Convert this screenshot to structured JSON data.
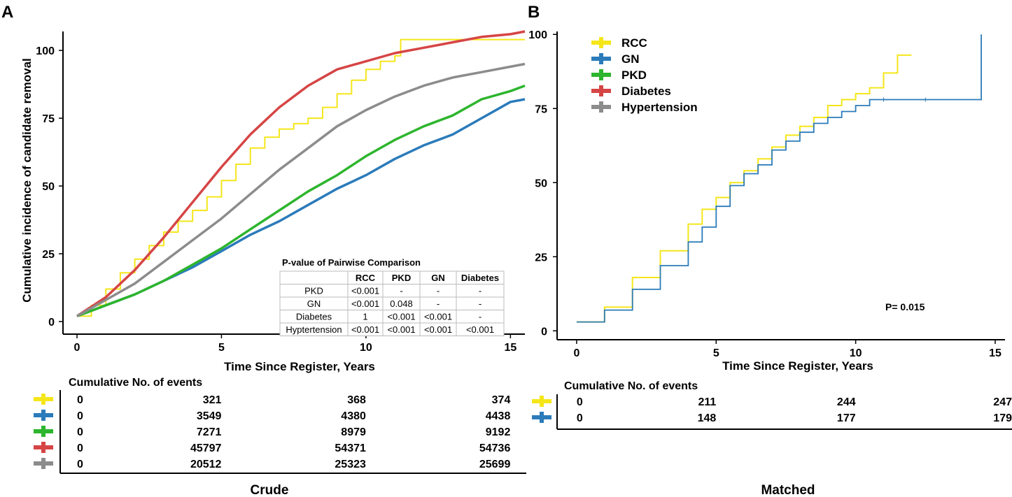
{
  "colors": {
    "RCC": "#f5e61a",
    "GN": "#2b7bba",
    "PKD": "#2db52d",
    "Diabetes": "#d64545",
    "Hypertension": "#8c8c8c",
    "axis": "#000000",
    "table_border": "#bbbbbb"
  },
  "chart_data": [
    {
      "panel_label": "A",
      "panel_title": "Crude",
      "type": "line",
      "xlabel": "Time Since Register, Years",
      "ylabel": "Cumulative incidence of candidate removal",
      "xlim": [
        0,
        15.5
      ],
      "ylim": [
        0,
        107
      ],
      "xticks": [
        "0",
        "5",
        "10",
        "15"
      ],
      "yticks": [
        "0",
        "25",
        "50",
        "75",
        "100"
      ],
      "series": [
        {
          "name": "RCC",
          "color": "#f5e61a",
          "x": [
            0,
            0.5,
            1,
            1.5,
            2,
            2.5,
            3,
            3.5,
            4,
            4.5,
            5,
            5.5,
            6,
            6.5,
            7,
            7.5,
            8,
            8.5,
            9,
            9.5,
            10,
            10.5,
            11,
            11.2,
            12,
            13,
            14,
            15,
            15.5
          ],
          "y": [
            2,
            6,
            12,
            18,
            23,
            28,
            33,
            37,
            41,
            46,
            52,
            58,
            64,
            68,
            71,
            73,
            75,
            79,
            84,
            89,
            93,
            96,
            98,
            104,
            104,
            104,
            104,
            104,
            104
          ]
        },
        {
          "name": "GN",
          "color": "#2b7bba",
          "x": [
            0,
            1,
            2,
            3,
            4,
            5,
            6,
            7,
            8,
            9,
            10,
            11,
            12,
            13,
            14,
            15,
            15.5
          ],
          "y": [
            2,
            6,
            10,
            15,
            20,
            26,
            32,
            37,
            43,
            49,
            54,
            60,
            65,
            69,
            75,
            81,
            82
          ]
        },
        {
          "name": "PKD",
          "color": "#2db52d",
          "x": [
            0,
            1,
            2,
            3,
            4,
            5,
            6,
            7,
            8,
            9,
            10,
            11,
            12,
            13,
            14,
            15,
            15.5
          ],
          "y": [
            2,
            6,
            10,
            15,
            21,
            27,
            34,
            41,
            48,
            54,
            61,
            67,
            72,
            76,
            82,
            85,
            87
          ]
        },
        {
          "name": "Diabetes",
          "color": "#d64545",
          "x": [
            0,
            1,
            2,
            3,
            4,
            5,
            6,
            7,
            8,
            9,
            10,
            11,
            12,
            13,
            14,
            15,
            15.5
          ],
          "y": [
            2,
            9,
            19,
            31,
            44,
            57,
            69,
            79,
            87,
            93,
            96,
            99,
            101,
            103,
            105,
            106,
            107
          ]
        },
        {
          "name": "Hypertension",
          "color": "#8c8c8c",
          "x": [
            0,
            1,
            2,
            3,
            4,
            5,
            6,
            7,
            8,
            9,
            10,
            11,
            12,
            13,
            14,
            15,
            15.5
          ],
          "y": [
            2,
            8,
            14,
            22,
            30,
            38,
            47,
            56,
            64,
            72,
            78,
            83,
            87,
            90,
            92,
            94,
            95
          ]
        }
      ]
    },
    {
      "panel_label": "B",
      "panel_title": "Matched",
      "type": "line",
      "xlabel": "Time Since Register, Years",
      "xlim": [
        -0.7,
        15
      ],
      "ylim": [
        -3,
        101
      ],
      "xticks": [
        "0",
        "5",
        "10",
        "15"
      ],
      "yticks": [
        "0",
        "25",
        "50",
        "75",
        "100"
      ],
      "annotation": "P= 0.015",
      "series": [
        {
          "name": "RCC",
          "color": "#f5e61a",
          "x": [
            0,
            1,
            2,
            3,
            4,
            4.5,
            5,
            5.5,
            6,
            6.5,
            7,
            7.5,
            8,
            8.5,
            9,
            9.5,
            10,
            10.5,
            11,
            11.5,
            12
          ],
          "y": [
            3,
            8,
            18,
            27,
            36,
            41,
            45,
            50,
            54,
            58,
            62,
            66,
            69,
            72,
            76,
            78,
            80,
            82,
            87,
            93,
            93
          ]
        },
        {
          "name": "GN",
          "color": "#2b7bba",
          "x": [
            0,
            1,
            2,
            3,
            4,
            4.5,
            5,
            5.5,
            6,
            6.5,
            7,
            7.5,
            8,
            8.5,
            9,
            9.5,
            10,
            10.5,
            11,
            12,
            13,
            14,
            14.5,
            14.5
          ],
          "y": [
            3,
            7,
            14,
            22,
            30,
            35,
            42,
            49,
            53,
            56,
            61,
            64,
            67,
            70,
            72,
            74,
            76,
            78,
            78,
            78,
            78,
            78,
            78,
            100
          ]
        }
      ]
    }
  ],
  "legend_b": [
    "RCC",
    "GN",
    "PKD",
    "Diabetes",
    "Hypertension"
  ],
  "pvalue_table": {
    "title": "P-value of Pairwise Comparison",
    "columns": [
      "",
      "RCC",
      "PKD",
      "GN",
      "Diabetes"
    ],
    "rows": [
      [
        "PKD",
        "<0.001",
        "-",
        "-",
        "-"
      ],
      [
        "GN",
        "<0.001",
        "0.048",
        "-",
        "-"
      ],
      [
        "Diabetes",
        "1",
        "<0.001",
        "<0.001",
        "-"
      ],
      [
        "Hyptertension",
        "<0.001",
        "<0.001",
        "<0.001",
        "<0.001"
      ]
    ]
  },
  "events_a": {
    "title": "Cumulative No. of events",
    "rows": [
      {
        "group": "RCC",
        "values": [
          "0",
          "321",
          "368",
          "374"
        ]
      },
      {
        "group": "GN",
        "values": [
          "0",
          "3549",
          "4380",
          "4438"
        ]
      },
      {
        "group": "PKD",
        "values": [
          "0",
          "7271",
          "8979",
          "9192"
        ]
      },
      {
        "group": "Diabetes",
        "values": [
          "0",
          "45797",
          "54371",
          "54736"
        ]
      },
      {
        "group": "Hypertension",
        "values": [
          "0",
          "20512",
          "25323",
          "25699"
        ]
      }
    ]
  },
  "events_b": {
    "title": "Cumulative No. of events",
    "rows": [
      {
        "group": "RCC",
        "values": [
          "0",
          "211",
          "244",
          "247"
        ]
      },
      {
        "group": "GN",
        "values": [
          "0",
          "148",
          "177",
          "179"
        ]
      }
    ]
  }
}
